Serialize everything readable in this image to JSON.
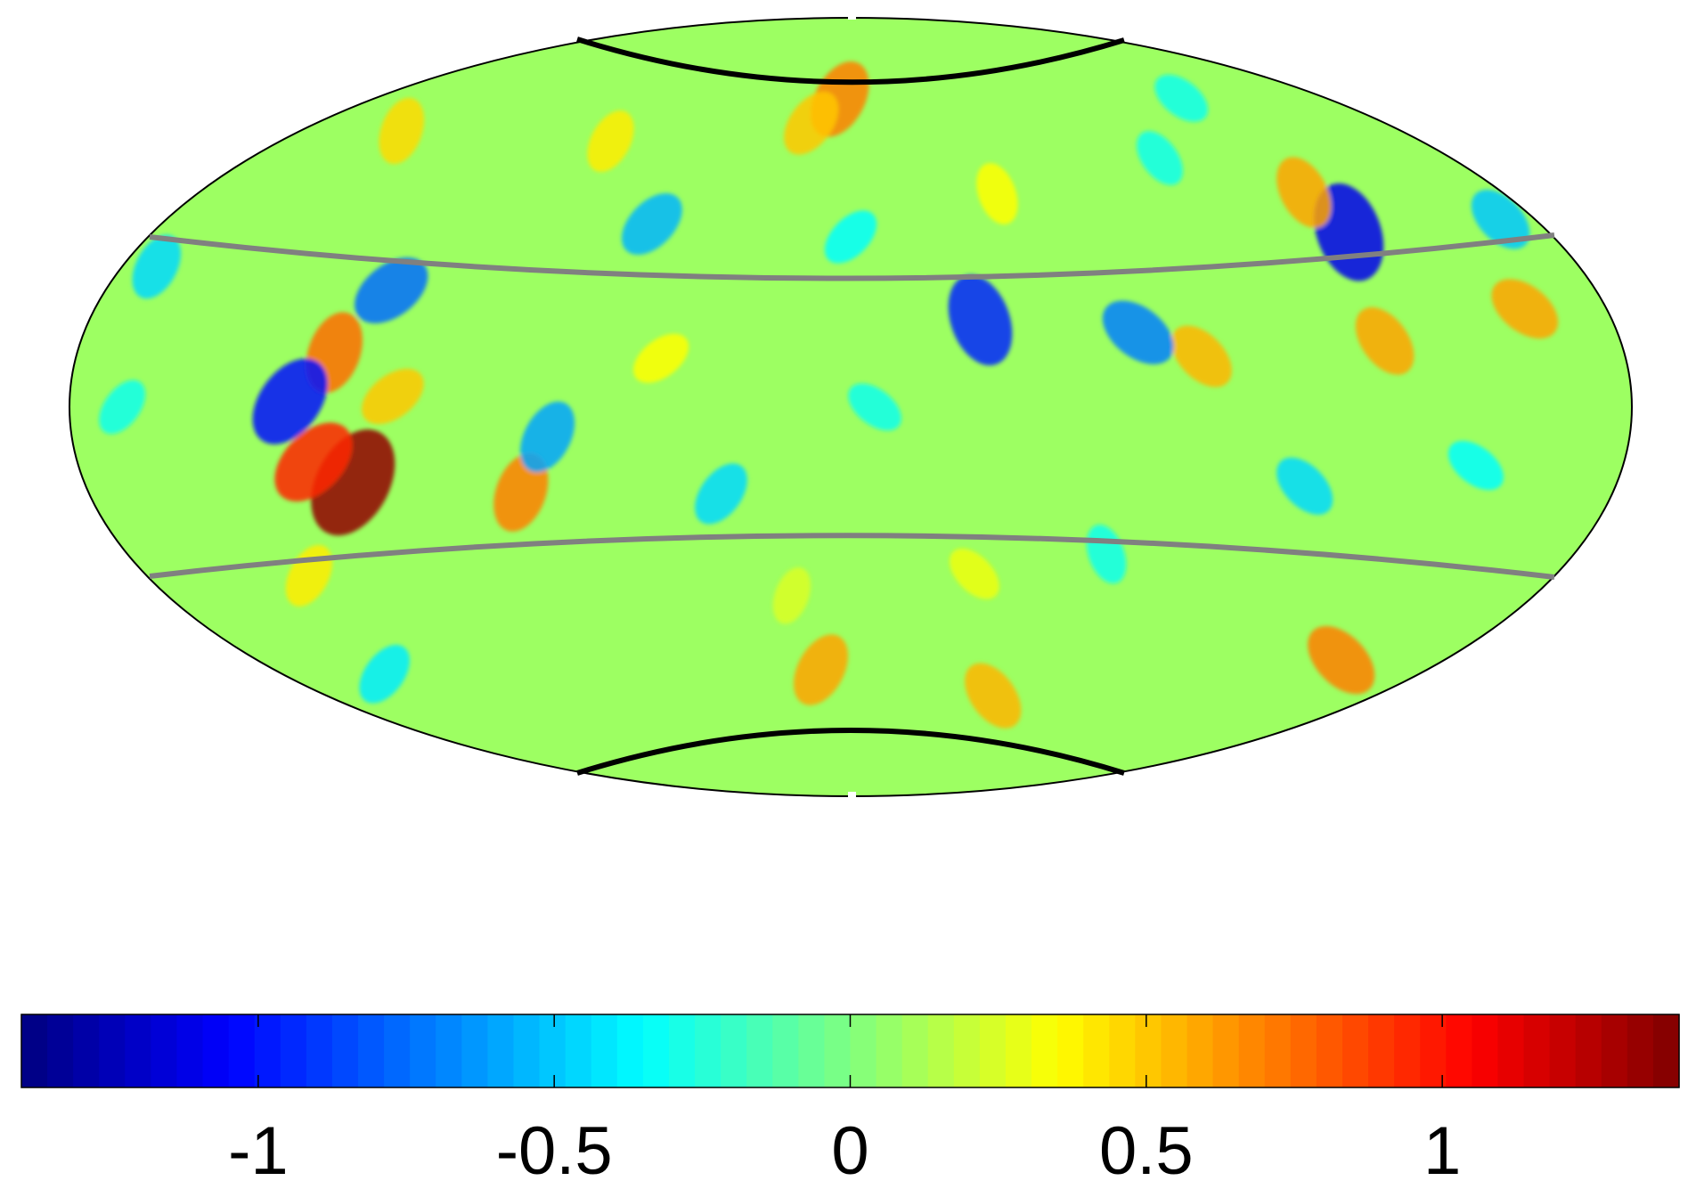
{
  "figure": {
    "projection": "hammer-aitoff",
    "colormap": "jet",
    "background": "#ffffff"
  },
  "colorbar": {
    "min": -1.4,
    "max": 1.4,
    "levels": 64,
    "orientation": "horizontal",
    "ticks": [
      -1,
      -0.5,
      0,
      0.5,
      1
    ],
    "tick_labels": [
      "-1",
      "-0.5",
      "0",
      "0.5",
      "1"
    ]
  },
  "boundary_lines": {
    "polar_cap": {
      "color": "#000000"
    },
    "galactic_band": {
      "color": "#808080"
    }
  },
  "features": [
    {
      "lon": 125,
      "lat": 32,
      "value": -1.1
    },
    {
      "lon": 124,
      "lat": 40,
      "value": 0.6
    },
    {
      "lon": 118,
      "lat": 12,
      "value": 0.6
    },
    {
      "lon": 75,
      "lat": 10,
      "value": 0.55
    },
    {
      "lon": 62,
      "lat": 15,
      "value": -0.7
    },
    {
      "lon": 28,
      "lat": 18,
      "value": -0.95
    },
    {
      "lon": -5,
      "lat": 68,
      "value": 0.7
    },
    {
      "lon": -15,
      "lat": 62,
      "value": 0.5
    },
    {
      "lon": -50,
      "lat": 38,
      "value": -0.55
    },
    {
      "lon": -105,
      "lat": 22,
      "value": -0.75
    },
    {
      "lon": -113,
      "lat": 10,
      "value": 0.75
    },
    {
      "lon": -110,
      "lat": -14,
      "value": 1.35
    },
    {
      "lon": -122,
      "lat": 1,
      "value": -1.0
    },
    {
      "lon": -118,
      "lat": -10,
      "value": 0.95
    },
    {
      "lon": -98,
      "lat": 2,
      "value": 0.5
    },
    {
      "lon": -72,
      "lat": -17,
      "value": 0.7
    },
    {
      "lon": -64,
      "lat": -6,
      "value": -0.6
    },
    {
      "lon": -28,
      "lat": -18,
      "value": -0.45
    },
    {
      "lon": 0,
      "lat": 36,
      "value": -0.35
    },
    {
      "lon": 5,
      "lat": 0,
      "value": -0.3
    },
    {
      "lon": -15,
      "lat": -40,
      "value": 0.25
    },
    {
      "lon": -10,
      "lat": -57,
      "value": 0.6
    },
    {
      "lon": 55,
      "lat": -62,
      "value": 0.55
    },
    {
      "lon": 150,
      "lat": -45,
      "value": 0.7
    },
    {
      "lon": 157,
      "lat": 16,
      "value": 0.6
    },
    {
      "lon": -150,
      "lat": 50,
      "value": 0.45
    },
    {
      "lon": -170,
      "lat": 22,
      "value": -0.45
    },
    {
      "lon": -150,
      "lat": -48,
      "value": -0.4
    },
    {
      "lon": 100,
      "lat": -15,
      "value": -0.45
    },
    {
      "lon": 140,
      "lat": -10,
      "value": -0.35
    },
    {
      "lon": 40,
      "lat": 45,
      "value": 0.35
    },
    {
      "lon": -80,
      "lat": 55,
      "value": 0.4
    },
    {
      "lon": 95,
      "lat": 50,
      "value": -0.3
    },
    {
      "lon": 30,
      "lat": -35,
      "value": 0.3
    },
    {
      "lon": -40,
      "lat": 10,
      "value": 0.35
    },
    {
      "lon": 60,
      "lat": -30,
      "value": -0.3
    },
    {
      "lon": -135,
      "lat": -30,
      "value": 0.4
    },
    {
      "lon": -165,
      "lat": 0,
      "value": -0.3
    },
    {
      "lon": 170,
      "lat": 30,
      "value": -0.5
    },
    {
      "lon": 135,
      "lat": 60,
      "value": -0.3
    }
  ]
}
